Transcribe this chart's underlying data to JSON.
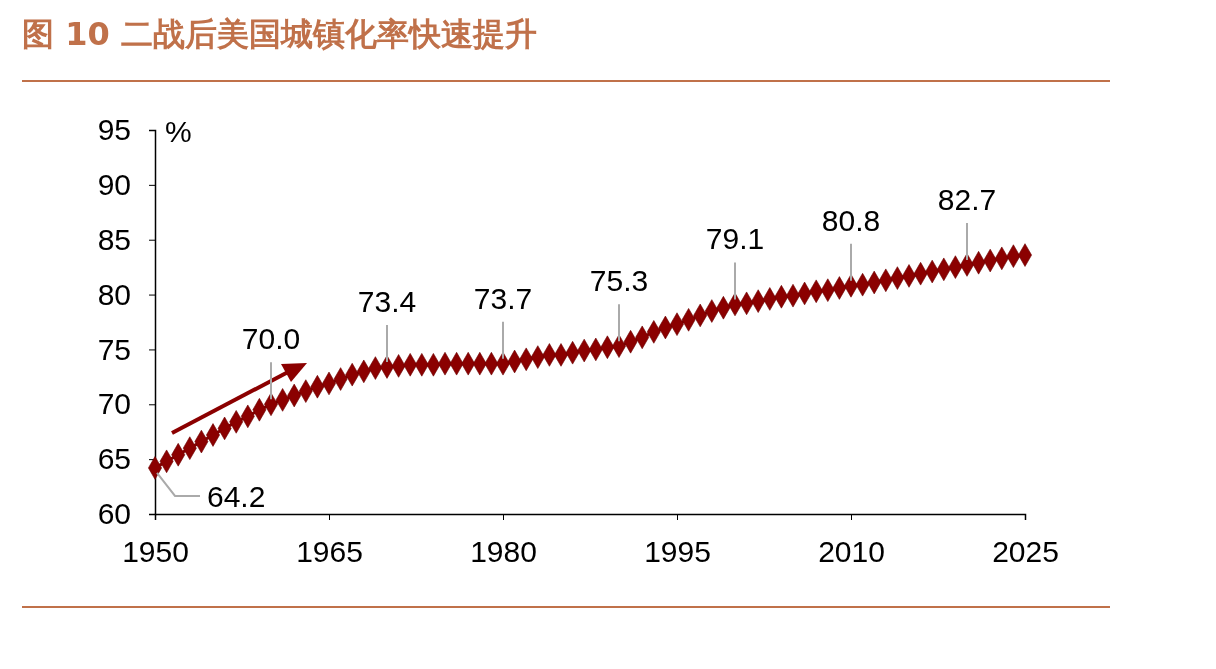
{
  "chart_data": {
    "type": "line",
    "title": "图 10 二战后美国城镇化率快速提升",
    "ylabel": "%",
    "x": [
      1950,
      1951,
      1952,
      1953,
      1954,
      1955,
      1956,
      1957,
      1958,
      1959,
      1960,
      1961,
      1962,
      1963,
      1964,
      1965,
      1966,
      1967,
      1968,
      1969,
      1970,
      1971,
      1972,
      1973,
      1974,
      1975,
      1976,
      1977,
      1978,
      1979,
      1980,
      1981,
      1982,
      1983,
      1984,
      1985,
      1986,
      1987,
      1988,
      1989,
      1990,
      1991,
      1992,
      1993,
      1994,
      1995,
      1996,
      1997,
      1998,
      1999,
      2000,
      2001,
      2002,
      2003,
      2004,
      2005,
      2006,
      2007,
      2008,
      2009,
      2010,
      2011,
      2012,
      2013,
      2014,
      2015,
      2016,
      2017,
      2018,
      2019,
      2020,
      2021,
      2022,
      2023,
      2024,
      2025
    ],
    "series": [
      {
        "color": "#8b0000",
        "values": [
          64.2,
          64.8,
          65.4,
          66.0,
          66.6,
          67.2,
          67.8,
          68.4,
          68.9,
          69.5,
          70.0,
          70.4,
          70.8,
          71.2,
          71.6,
          71.9,
          72.3,
          72.7,
          73.0,
          73.3,
          73.4,
          73.5,
          73.6,
          73.6,
          73.6,
          73.7,
          73.7,
          73.7,
          73.7,
          73.7,
          73.7,
          73.9,
          74.1,
          74.3,
          74.5,
          74.5,
          74.7,
          74.9,
          75.0,
          75.2,
          75.3,
          75.7,
          76.1,
          76.6,
          77.0,
          77.3,
          77.7,
          78.1,
          78.5,
          78.8,
          79.1,
          79.2,
          79.4,
          79.6,
          79.8,
          79.9,
          80.1,
          80.3,
          80.4,
          80.6,
          80.8,
          80.9,
          81.1,
          81.3,
          81.5,
          81.7,
          81.9,
          82.1,
          82.3,
          82.5,
          82.7,
          82.9,
          83.1,
          83.3,
          83.5,
          83.6
        ]
      }
    ],
    "marker": "diamond",
    "xlim": [
      1950,
      2025
    ],
    "xticks": [
      1950,
      1965,
      1980,
      1995,
      2010,
      2025
    ],
    "ylim": [
      60,
      95
    ],
    "yticks": [
      60,
      65,
      70,
      75,
      80,
      85,
      90,
      95
    ],
    "grid": false,
    "annotations": [
      {
        "text": "64.2",
        "x": 1950,
        "y": 64.2
      },
      {
        "text": "70.0",
        "x": 1960,
        "y": 70.0
      },
      {
        "text": "73.4",
        "x": 1970,
        "y": 73.4
      },
      {
        "text": "73.7",
        "x": 1980,
        "y": 73.7
      },
      {
        "text": "75.3",
        "x": 1990,
        "y": 75.3
      },
      {
        "text": "79.1",
        "x": 2000,
        "y": 79.1
      },
      {
        "text": "80.8",
        "x": 2010,
        "y": 80.8
      },
      {
        "text": "82.7",
        "x": 2020,
        "y": 82.7
      }
    ]
  }
}
